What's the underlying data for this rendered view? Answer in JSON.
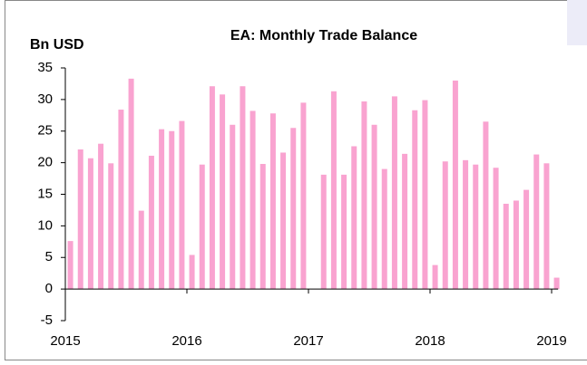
{
  "chart_data": {
    "type": "bar",
    "title": "EA: Monthly Trade Balance",
    "y_label": "Bn USD",
    "categories": [
      "2015",
      null,
      null,
      null,
      null,
      null,
      null,
      null,
      null,
      null,
      null,
      null,
      "2016",
      null,
      null,
      null,
      null,
      null,
      null,
      null,
      null,
      null,
      null,
      null,
      "2017",
      null,
      null,
      null,
      null,
      null,
      null,
      null,
      null,
      null,
      null,
      null,
      "2018",
      null,
      null,
      null,
      null,
      null,
      null,
      null,
      null,
      null,
      null,
      null,
      "2019"
    ],
    "values": [
      7.6,
      22.1,
      20.7,
      23.0,
      19.9,
      28.4,
      33.3,
      12.4,
      21.1,
      25.3,
      25.0,
      26.6,
      5.4,
      19.7,
      32.1,
      30.8,
      26.0,
      32.1,
      28.2,
      19.8,
      27.8,
      21.6,
      25.5,
      29.5,
      null,
      18.1,
      31.3,
      18.1,
      22.6,
      29.7,
      26.0,
      19.0,
      30.5,
      21.4,
      28.3,
      29.9,
      3.8,
      20.2,
      33.0,
      20.4,
      19.7,
      26.5,
      19.2,
      13.5,
      14.0,
      15.7,
      21.3,
      19.9,
      1.8
    ],
    "color": "#f9a3d0",
    "ylim": [
      -5,
      35
    ],
    "yticks": [
      -5,
      0,
      5,
      10,
      15,
      20,
      25,
      30,
      35
    ],
    "grid": false
  }
}
